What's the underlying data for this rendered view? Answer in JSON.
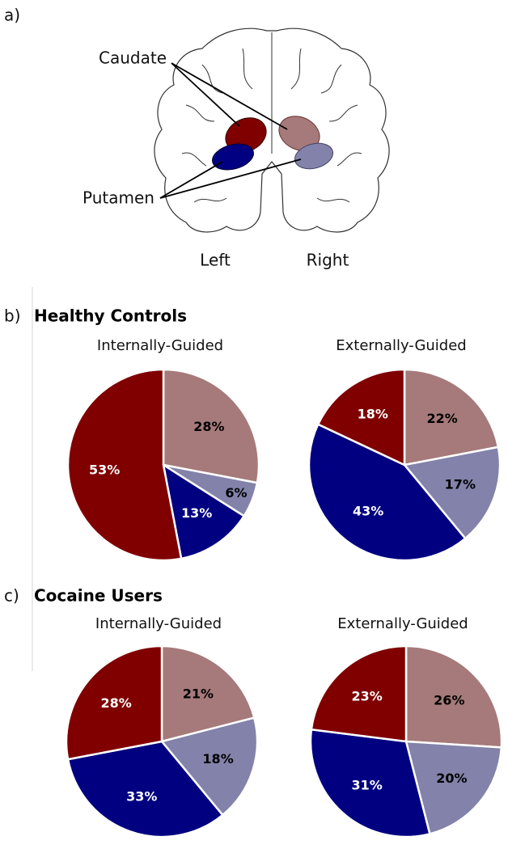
{
  "diagram": {
    "panel_label": "a)",
    "caudate": "Caudate",
    "putamen": "Putamen",
    "left": "Left",
    "right": "Right"
  },
  "panels": [
    {
      "label": "b)",
      "title": "Healthy Controls"
    },
    {
      "label": "c)",
      "title": "Cocaine Users"
    }
  ],
  "chart_data": [
    {
      "type": "pie",
      "title": "Internally-Guided",
      "values": [
        28,
        6,
        13,
        53
      ],
      "value_labels": [
        "28%",
        "6%",
        "13%",
        "53%"
      ],
      "colors": [
        "#a67a7a",
        "#8282aa",
        "#000080",
        "#800000"
      ]
    },
    {
      "type": "pie",
      "title": "Externally-Guided",
      "values": [
        22,
        17,
        43,
        18
      ],
      "value_labels": [
        "22%",
        "17%",
        "43%",
        "18%"
      ],
      "colors": [
        "#a67a7a",
        "#8282aa",
        "#000080",
        "#800000"
      ]
    },
    {
      "type": "pie",
      "title": "Internally-Guided",
      "values": [
        21,
        18,
        33,
        28
      ],
      "value_labels": [
        "21%",
        "18%",
        "33%",
        "28%"
      ],
      "colors": [
        "#a67a7a",
        "#8282aa",
        "#000080",
        "#800000"
      ]
    },
    {
      "type": "pie",
      "title": "Externally-Guided",
      "values": [
        26,
        20,
        31,
        23
      ],
      "value_labels": [
        "26%",
        "20%",
        "31%",
        "23%"
      ],
      "colors": [
        "#a67a7a",
        "#8282aa",
        "#000080",
        "#800000"
      ]
    }
  ]
}
